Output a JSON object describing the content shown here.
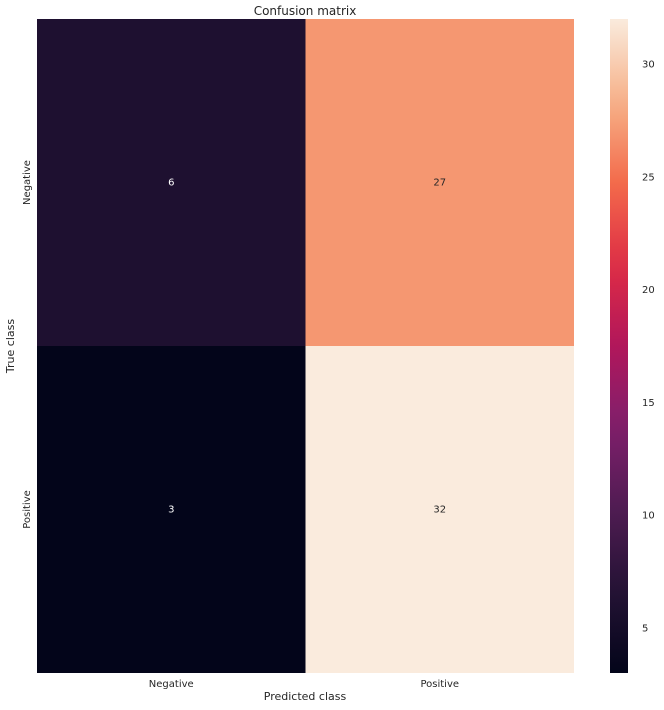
{
  "chart_data": {
    "type": "heatmap",
    "title": "Confusion matrix",
    "xlabel": "Predicted class",
    "ylabel": "True class",
    "x_categories": [
      "Negative",
      "Positive"
    ],
    "y_categories": [
      "Negative",
      "Positive"
    ],
    "values": [
      [
        6,
        27
      ],
      [
        3,
        32
      ]
    ],
    "colorbar": {
      "min": 3,
      "max": 32,
      "ticks": [
        5,
        10,
        15,
        20,
        25,
        30
      ],
      "colormap": "rocket"
    },
    "grid": false
  }
}
